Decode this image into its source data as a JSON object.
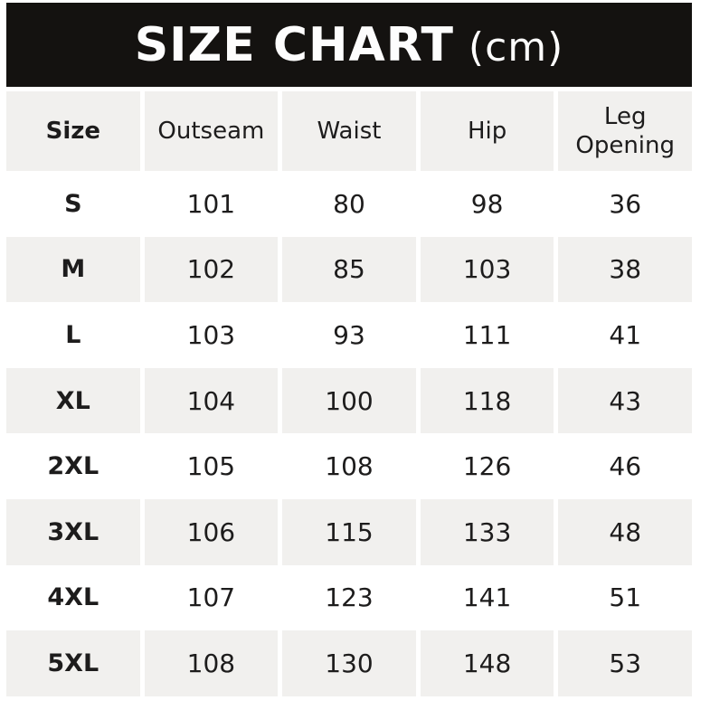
{
  "banner": {
    "title": "SIZE CHART",
    "unit": "(cm)"
  },
  "colors": {
    "banner_bg": "#141210",
    "banner_text": "#fdfdfd",
    "row_shade": "#f1f0ee",
    "text": "#1d1c1c",
    "page_bg": "#ffffff"
  },
  "chart_data": {
    "type": "table",
    "title": "SIZE CHART (cm)",
    "columns": [
      "Size",
      "Outseam",
      "Waist",
      "Hip",
      "Leg Opening"
    ],
    "rows": [
      [
        "S",
        "101",
        "80",
        "98",
        "36"
      ],
      [
        "M",
        "102",
        "85",
        "103",
        "38"
      ],
      [
        "L",
        "103",
        "93",
        "111",
        "41"
      ],
      [
        "XL",
        "104",
        "100",
        "118",
        "43"
      ],
      [
        "2XL",
        "105",
        "108",
        "126",
        "46"
      ],
      [
        "3XL",
        "106",
        "115",
        "133",
        "48"
      ],
      [
        "4XL",
        "107",
        "123",
        "141",
        "51"
      ],
      [
        "5XL",
        "108",
        "130",
        "148",
        "53"
      ]
    ],
    "layout_hints": {
      "shaded_rows": [
        "header",
        "M",
        "XL",
        "3XL",
        "5XL"
      ],
      "grid": "off",
      "unit": "cm"
    }
  }
}
